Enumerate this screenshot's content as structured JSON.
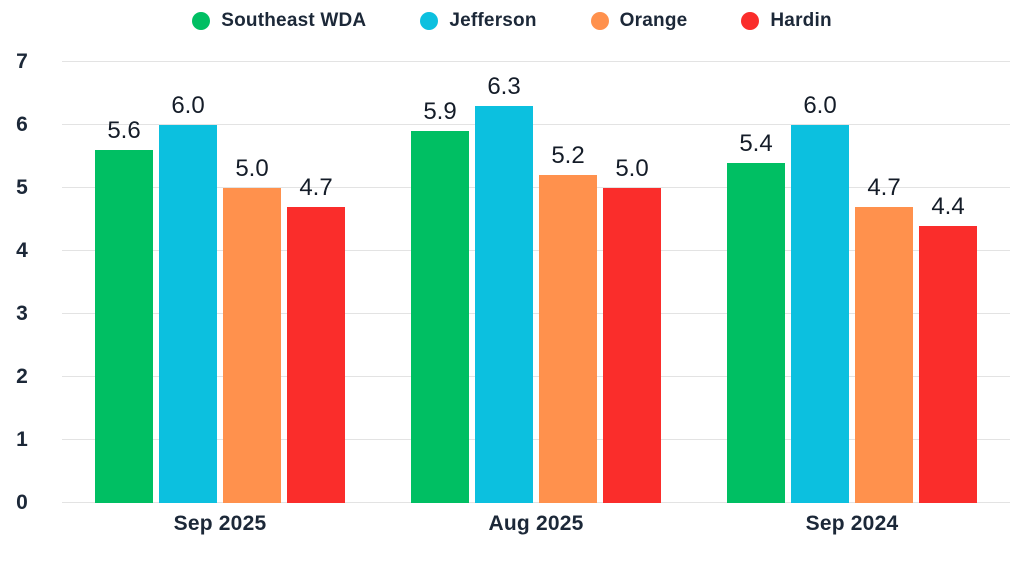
{
  "chart_data": {
    "type": "bar",
    "title": "",
    "xlabel": "",
    "ylabel": "",
    "categories": [
      "Sep 2025",
      "Aug 2025",
      "Sep 2024"
    ],
    "series": [
      {
        "name": "Southeast WDA",
        "color": "#00BF63",
        "values": [
          5.6,
          5.9,
          5.4
        ]
      },
      {
        "name": "Jefferson",
        "color": "#0CC0DF",
        "values": [
          6.0,
          6.3,
          6.0
        ]
      },
      {
        "name": "Orange",
        "color": "#FF914D",
        "values": [
          5.0,
          5.2,
          4.7
        ]
      },
      {
        "name": "Hardin",
        "color": "#FA2D2B",
        "values": [
          4.7,
          5.0,
          4.4
        ]
      }
    ],
    "ylim": [
      0,
      7
    ],
    "yticks": [
      0,
      1,
      2,
      3,
      4,
      5,
      6,
      7
    ],
    "grid": "horizontal",
    "legend_position": "top",
    "value_labels": true,
    "value_format": "one-decimal",
    "colors": {
      "label_text": "#1C2838",
      "value_text": "#141C28",
      "gridline": "#E3E3E3",
      "background": "#FFFFFF"
    }
  }
}
